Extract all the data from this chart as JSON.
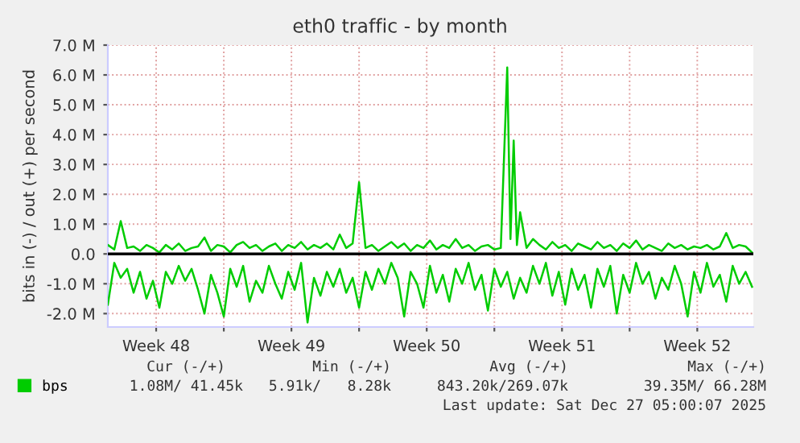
{
  "chart_data": {
    "type": "line",
    "title": "eth0 traffic - by month",
    "ylabel": "bits in (-) / out (+) per second",
    "xlim": [
      "2025-11-25T00:00",
      "2025-12-28T09:36"
    ],
    "ylim": [
      -2450000,
      7000000
    ],
    "xticks": [
      {
        "value": "2025-12-01",
        "label": null
      },
      {
        "value": "2025-12-08",
        "label": null
      },
      {
        "value": "2025-12-15",
        "label": null
      },
      {
        "value": "2025-12-22",
        "label": null
      },
      {
        "value": "2025-11-27T12:00",
        "label": "Week 48"
      },
      {
        "value": "2025-12-04T12:00",
        "label": "Week 49"
      },
      {
        "value": "2025-12-11T12:00",
        "label": "Week 50"
      },
      {
        "value": "2025-12-18T12:00",
        "label": "Week 51"
      },
      {
        "value": "2025-12-25T12:00",
        "label": "Week 52"
      }
    ],
    "yticks": [
      {
        "value": -2000000,
        "label": "-2.0 M"
      },
      {
        "value": -1000000,
        "label": "-1.0 M"
      },
      {
        "value": 0,
        "label": "0.0"
      },
      {
        "value": 1000000,
        "label": "1.0 M"
      },
      {
        "value": 2000000,
        "label": "2.0 M"
      },
      {
        "value": 3000000,
        "label": "3.0 M"
      },
      {
        "value": 4000000,
        "label": "4.0 M"
      },
      {
        "value": 5000000,
        "label": "5.0 M"
      },
      {
        "value": 6000000,
        "label": "6.0 M"
      },
      {
        "value": 7000000,
        "label": "7.0 M"
      }
    ],
    "grid": true,
    "legend": "bottom left",
    "marker": "none",
    "line_style": "solid",
    "ref_lines": [
      {
        "axis": "y",
        "value": 0,
        "color": "#000000"
      }
    ],
    "x": [
      "2025-11-25T00:00",
      "2025-11-25T08:00",
      "2025-11-25T16:00",
      "2025-11-26T00:00",
      "2025-11-26T08:00",
      "2025-11-26T16:00",
      "2025-11-27T00:00",
      "2025-11-27T08:00",
      "2025-11-27T16:00",
      "2025-11-28T00:00",
      "2025-11-28T08:00",
      "2025-11-28T16:00",
      "2025-11-29T00:00",
      "2025-11-29T08:00",
      "2025-11-29T16:00",
      "2025-11-30T00:00",
      "2025-11-30T08:00",
      "2025-11-30T16:00",
      "2025-12-01T00:00",
      "2025-12-01T08:00",
      "2025-12-01T16:00",
      "2025-12-02T00:00",
      "2025-12-02T08:00",
      "2025-12-02T16:00",
      "2025-12-03T00:00",
      "2025-12-03T08:00",
      "2025-12-03T16:00",
      "2025-12-04T00:00",
      "2025-12-04T08:00",
      "2025-12-04T16:00",
      "2025-12-05T00:00",
      "2025-12-05T08:00",
      "2025-12-05T16:00",
      "2025-12-06T00:00",
      "2025-12-06T08:00",
      "2025-12-06T16:00",
      "2025-12-07T00:00",
      "2025-12-07T08:00",
      "2025-12-07T16:00",
      "2025-12-08T00:00",
      "2025-12-08T08:00",
      "2025-12-08T16:00",
      "2025-12-09T00:00",
      "2025-12-09T08:00",
      "2025-12-09T16:00",
      "2025-12-10T00:00",
      "2025-12-10T08:00",
      "2025-12-10T16:00",
      "2025-12-11T00:00",
      "2025-12-11T08:00",
      "2025-12-11T16:00",
      "2025-12-12T00:00",
      "2025-12-12T08:00",
      "2025-12-12T16:00",
      "2025-12-13T00:00",
      "2025-12-13T08:00",
      "2025-12-13T16:00",
      "2025-12-14T00:00",
      "2025-12-14T08:00",
      "2025-12-14T16:00",
      "2025-12-15T00:00",
      "2025-12-15T08:00",
      "2025-12-15T16:00",
      "2025-12-16T00:00",
      "2025-12-16T08:00",
      "2025-12-16T16:00",
      "2025-12-17T00:00",
      "2025-12-17T08:00",
      "2025-12-17T16:00",
      "2025-12-18T00:00",
      "2025-12-18T08:00",
      "2025-12-18T16:00",
      "2025-12-19T00:00",
      "2025-12-19T08:00",
      "2025-12-19T16:00",
      "2025-12-20T00:00",
      "2025-12-20T08:00",
      "2025-12-20T16:00",
      "2025-12-21T00:00",
      "2025-12-21T08:00",
      "2025-12-21T16:00",
      "2025-12-22T00:00",
      "2025-12-22T08:00",
      "2025-12-22T16:00",
      "2025-12-23T00:00",
      "2025-12-23T08:00",
      "2025-12-23T16:00",
      "2025-12-24T00:00",
      "2025-12-24T08:00",
      "2025-12-24T16:00",
      "2025-12-25T00:00",
      "2025-12-25T08:00",
      "2025-12-25T16:00",
      "2025-12-26T00:00",
      "2025-12-26T08:00",
      "2025-12-26T16:00",
      "2025-12-27T00:00",
      "2025-12-27T08:00",
      "2025-12-27T16:00",
      "2025-12-28T00:00",
      "2025-12-28T08:00"
    ],
    "series": [
      {
        "name": "bps",
        "color": "#00cc00",
        "x": [
          "2025-11-25T00:00",
          "2025-11-25T08:00",
          "2025-11-25T16:00",
          "2025-11-26T00:00",
          "2025-11-26T08:00",
          "2025-11-26T16:00",
          "2025-11-27T00:00",
          "2025-11-27T08:00",
          "2025-11-27T16:00",
          "2025-11-28T00:00",
          "2025-11-28T08:00",
          "2025-11-28T16:00",
          "2025-11-29T00:00",
          "2025-11-29T08:00",
          "2025-11-29T16:00",
          "2025-11-30T00:00",
          "2025-11-30T08:00",
          "2025-11-30T16:00",
          "2025-12-01T00:00",
          "2025-12-01T08:00",
          "2025-12-01T16:00",
          "2025-12-02T00:00",
          "2025-12-02T08:00",
          "2025-12-02T16:00",
          "2025-12-03T00:00",
          "2025-12-03T08:00",
          "2025-12-03T16:00",
          "2025-12-04T00:00",
          "2025-12-04T08:00",
          "2025-12-04T16:00",
          "2025-12-05T00:00",
          "2025-12-05T08:00",
          "2025-12-05T16:00",
          "2025-12-06T00:00",
          "2025-12-06T08:00",
          "2025-12-06T16:00",
          "2025-12-07T00:00",
          "2025-12-07T08:00",
          "2025-12-07T16:00",
          "2025-12-08T00:00",
          "2025-12-08T08:00",
          "2025-12-08T16:00",
          "2025-12-09T00:00",
          "2025-12-09T08:00",
          "2025-12-09T16:00",
          "2025-12-10T00:00",
          "2025-12-10T08:00",
          "2025-12-10T16:00",
          "2025-12-11T00:00",
          "2025-12-11T08:00",
          "2025-12-11T16:00",
          "2025-12-12T00:00",
          "2025-12-12T08:00",
          "2025-12-12T16:00",
          "2025-12-13T00:00",
          "2025-12-13T08:00",
          "2025-12-13T16:00",
          "2025-12-14T00:00",
          "2025-12-14T08:00",
          "2025-12-14T16:00",
          "2025-12-15T00:00",
          "2025-12-15T08:00",
          "2025-12-15T16:00",
          "2025-12-15T20:00",
          "2025-12-16T00:00",
          "2025-12-16T04:00",
          "2025-12-16T08:00",
          "2025-12-16T16:00",
          "2025-12-17T00:00",
          "2025-12-17T08:00",
          "2025-12-17T16:00",
          "2025-12-18T00:00",
          "2025-12-18T08:00",
          "2025-12-18T16:00",
          "2025-12-19T00:00",
          "2025-12-19T08:00",
          "2025-12-19T16:00",
          "2025-12-20T00:00",
          "2025-12-20T08:00",
          "2025-12-20T16:00",
          "2025-12-21T00:00",
          "2025-12-21T08:00",
          "2025-12-21T16:00",
          "2025-12-22T00:00",
          "2025-12-22T08:00",
          "2025-12-22T16:00",
          "2025-12-23T00:00",
          "2025-12-23T08:00",
          "2025-12-23T16:00",
          "2025-12-24T00:00",
          "2025-12-24T08:00",
          "2025-12-24T16:00",
          "2025-12-25T00:00",
          "2025-12-25T08:00",
          "2025-12-25T16:00",
          "2025-12-26T00:00",
          "2025-12-26T08:00",
          "2025-12-26T16:00",
          "2025-12-27T00:00",
          "2025-12-27T08:00",
          "2025-12-27T16:00",
          "2025-12-28T00:00",
          "2025-12-28T08:00"
        ],
        "values": [
          300000.0,
          150000.0,
          1100000.0,
          200000.0,
          250000.0,
          100000.0,
          300000.0,
          200000.0,
          50000.0,
          300000.0,
          150000.0,
          350000.0,
          100000.0,
          200000.0,
          250000.0,
          550000.0,
          100000.0,
          300000.0,
          250000.0,
          50000.0,
          300000.0,
          400000.0,
          200000.0,
          300000.0,
          100000.0,
          250000.0,
          350000.0,
          100000.0,
          300000.0,
          200000.0,
          400000.0,
          150000.0,
          300000.0,
          200000.0,
          350000.0,
          150000.0,
          650000.0,
          200000.0,
          350000.0,
          2400000.0,
          200000.0,
          300000.0,
          100000.0,
          250000.0,
          400000.0,
          200000.0,
          350000.0,
          100000.0,
          300000.0,
          200000.0,
          450000.0,
          150000.0,
          300000.0,
          200000.0,
          500000.0,
          200000.0,
          300000.0,
          100000.0,
          250000.0,
          300000.0,
          150000.0,
          200000.0,
          6250000.0,
          500000.0,
          3800000.0,
          300000.0,
          1400000.0,
          200000.0,
          500000.0,
          300000.0,
          150000.0,
          400000.0,
          200000.0,
          300000.0,
          100000.0,
          350000.0,
          250000.0,
          150000.0,
          400000.0,
          200000.0,
          300000.0,
          100000.0,
          350000.0,
          200000.0,
          450000.0,
          150000.0,
          300000.0,
          200000.0,
          100000.0,
          350000.0,
          200000.0,
          300000.0,
          150000.0,
          250000.0,
          200000.0,
          300000.0,
          150000.0,
          250000.0,
          700000.0,
          200000.0,
          300000.0,
          250000.0,
          50000.0
        ]
      },
      {
        "color": "#00cc00",
        "values": [
          -1700000.0,
          -300000.0,
          -800000.0,
          -500000.0,
          -1300000.0,
          -600000.0,
          -1500000.0,
          -900000.0,
          -1800000.0,
          -600000.0,
          -1000000.0,
          -400000.0,
          -900000.0,
          -500000.0,
          -1200000.0,
          -2000000.0,
          -700000.0,
          -1300000.0,
          -2100000.0,
          -500000.0,
          -1100000.0,
          -400000.0,
          -1600000.0,
          -900000.0,
          -1300000.0,
          -400000.0,
          -1000000.0,
          -1500000.0,
          -600000.0,
          -1200000.0,
          -300000.0,
          -2300000.0,
          -800000.0,
          -1400000.0,
          -600000.0,
          -1100000.0,
          -500000.0,
          -1300000.0,
          -800000.0,
          -1800000.0,
          -600000.0,
          -1200000.0,
          -500000.0,
          -1000000.0,
          -300000.0,
          -800000.0,
          -2100000.0,
          -600000.0,
          -1000000.0,
          -1800000.0,
          -400000.0,
          -1300000.0,
          -700000.0,
          -1600000.0,
          -500000.0,
          -1000000.0,
          -300000.0,
          -1200000.0,
          -700000.0,
          -1900000.0,
          -500000.0,
          -1100000.0,
          -600000.0,
          -1500000.0,
          -800000.0,
          -1300000.0,
          -400000.0,
          -1000000.0,
          -300000.0,
          -1400000.0,
          -600000.0,
          -1700000.0,
          -500000.0,
          -1200000.0,
          -700000.0,
          -1800000.0,
          -500000.0,
          -1100000.0,
          -400000.0,
          -2000000.0,
          -700000.0,
          -1300000.0,
          -300000.0,
          -1000000.0,
          -600000.0,
          -1500000.0,
          -800000.0,
          -1200000.0,
          -400000.0,
          -1000000.0,
          -2100000.0,
          -600000.0,
          -1300000.0,
          -300000.0,
          -1100000.0,
          -700000.0,
          -1600000.0,
          -400000.0,
          -1000000.0,
          -600000.0,
          -1100000.0
        ]
      }
    ],
    "annotations": [
      "Cur (-/+)",
      "Min (-/+)",
      "Avg (-/+)",
      "Max (-/+)",
      "1.08M/ 41.45k",
      "5.91k/   8.28k",
      "843.20k/269.07k",
      "39.35M/ 66.28M",
      "Last update: Sat Dec 27 05:00:07 2025"
    ]
  }
}
